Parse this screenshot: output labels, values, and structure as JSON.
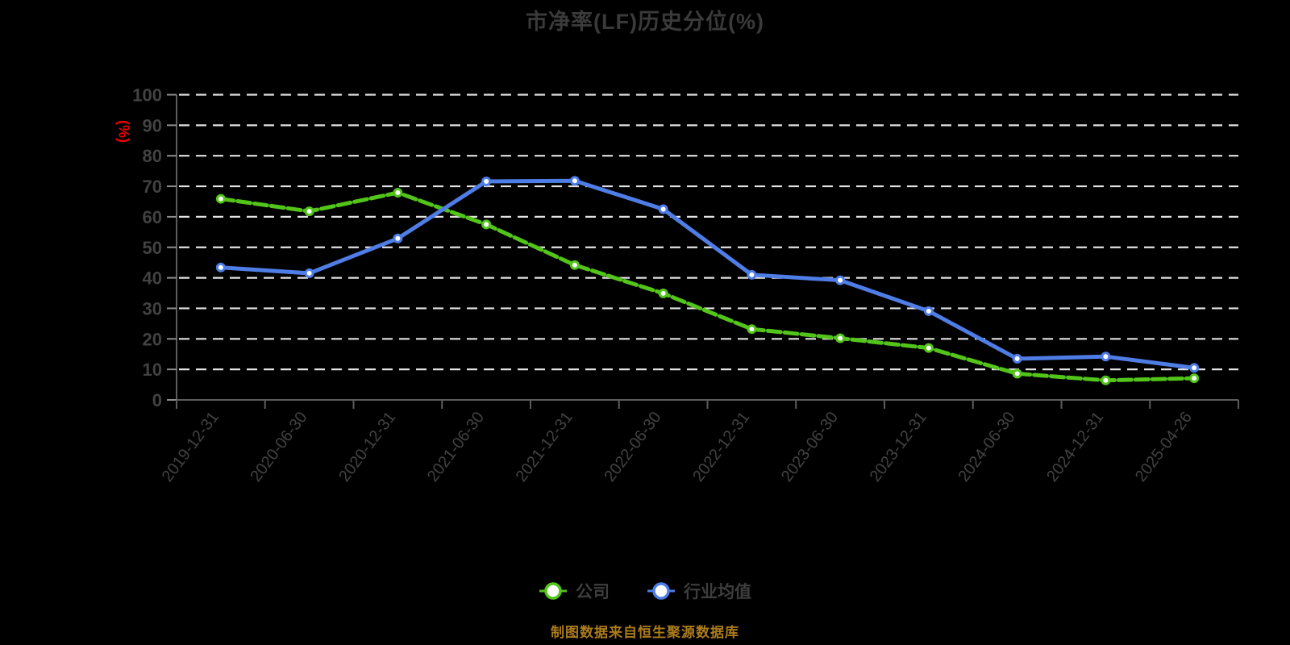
{
  "chart_data": {
    "type": "line",
    "title": "市净率(LF)历史分位(%)",
    "ylabel": "(%)",
    "xlabel": "",
    "ylim": [
      0,
      100
    ],
    "y_ticks": [
      0,
      10,
      20,
      30,
      40,
      50,
      60,
      70,
      80,
      90,
      100
    ],
    "grid": "horizontal-dashed",
    "legend_position": "bottom",
    "categories": [
      "2019-12-31",
      "2020-06-30",
      "2020-12-31",
      "2021-06-30",
      "2021-12-31",
      "2022-06-30",
      "2022-12-31",
      "2023-06-30",
      "2023-12-31",
      "2024-06-30",
      "2024-12-31",
      "2025-04-26"
    ],
    "series": [
      {
        "name": "公司",
        "color": "#52c41a",
        "line_style": "dashed",
        "values": [
          65.9,
          61.8,
          67.9,
          57.5,
          44.2,
          34.9,
          23.2,
          20.2,
          17.0,
          8.6,
          6.4,
          7.1
        ]
      },
      {
        "name": "行业均值",
        "color": "#4f7de6",
        "line_style": "solid",
        "values": [
          43.4,
          41.5,
          52.9,
          71.6,
          71.8,
          62.5,
          41.0,
          39.2,
          29.1,
          13.5,
          14.2,
          10.5
        ]
      }
    ]
  },
  "footer": {
    "source_note": "制图数据来自恒生聚源数据库"
  },
  "colors": {
    "background": "#000000",
    "title_text": "#3a3a3a",
    "axis_tick_label": "#424242",
    "axis_line": "#5c5c5c",
    "y_tick_mark": "#8f8f8f",
    "x_tick_mark": "#5c5c5c",
    "gridline": "#e2e2e2",
    "y_unit_label": "#ec0000",
    "legend_text": "#3d3d3d",
    "marker_fill": "#ffffff",
    "footer_text": "#ab7b1c"
  }
}
